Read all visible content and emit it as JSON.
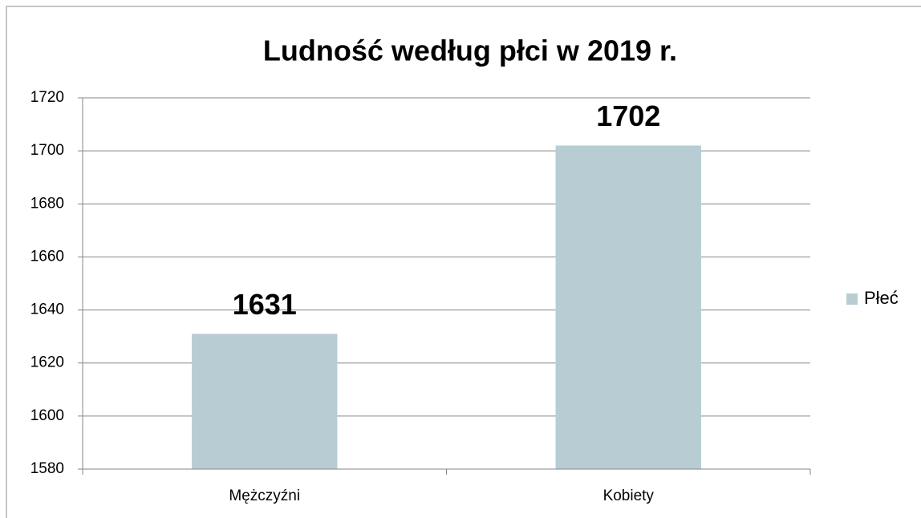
{
  "chart_data": {
    "type": "bar",
    "title": "Ludność według płci w 2019 r.",
    "categories": [
      "Mężczyźni",
      "Kobiety"
    ],
    "series": [
      {
        "name": "Płeć",
        "color": "#b7cdd3",
        "values": [
          1631,
          1702
        ]
      }
    ],
    "ylim": [
      1580,
      1720
    ],
    "yticks": [
      1580,
      1600,
      1620,
      1640,
      1660,
      1680,
      1700,
      1720
    ],
    "grid": true,
    "legend": "right"
  }
}
